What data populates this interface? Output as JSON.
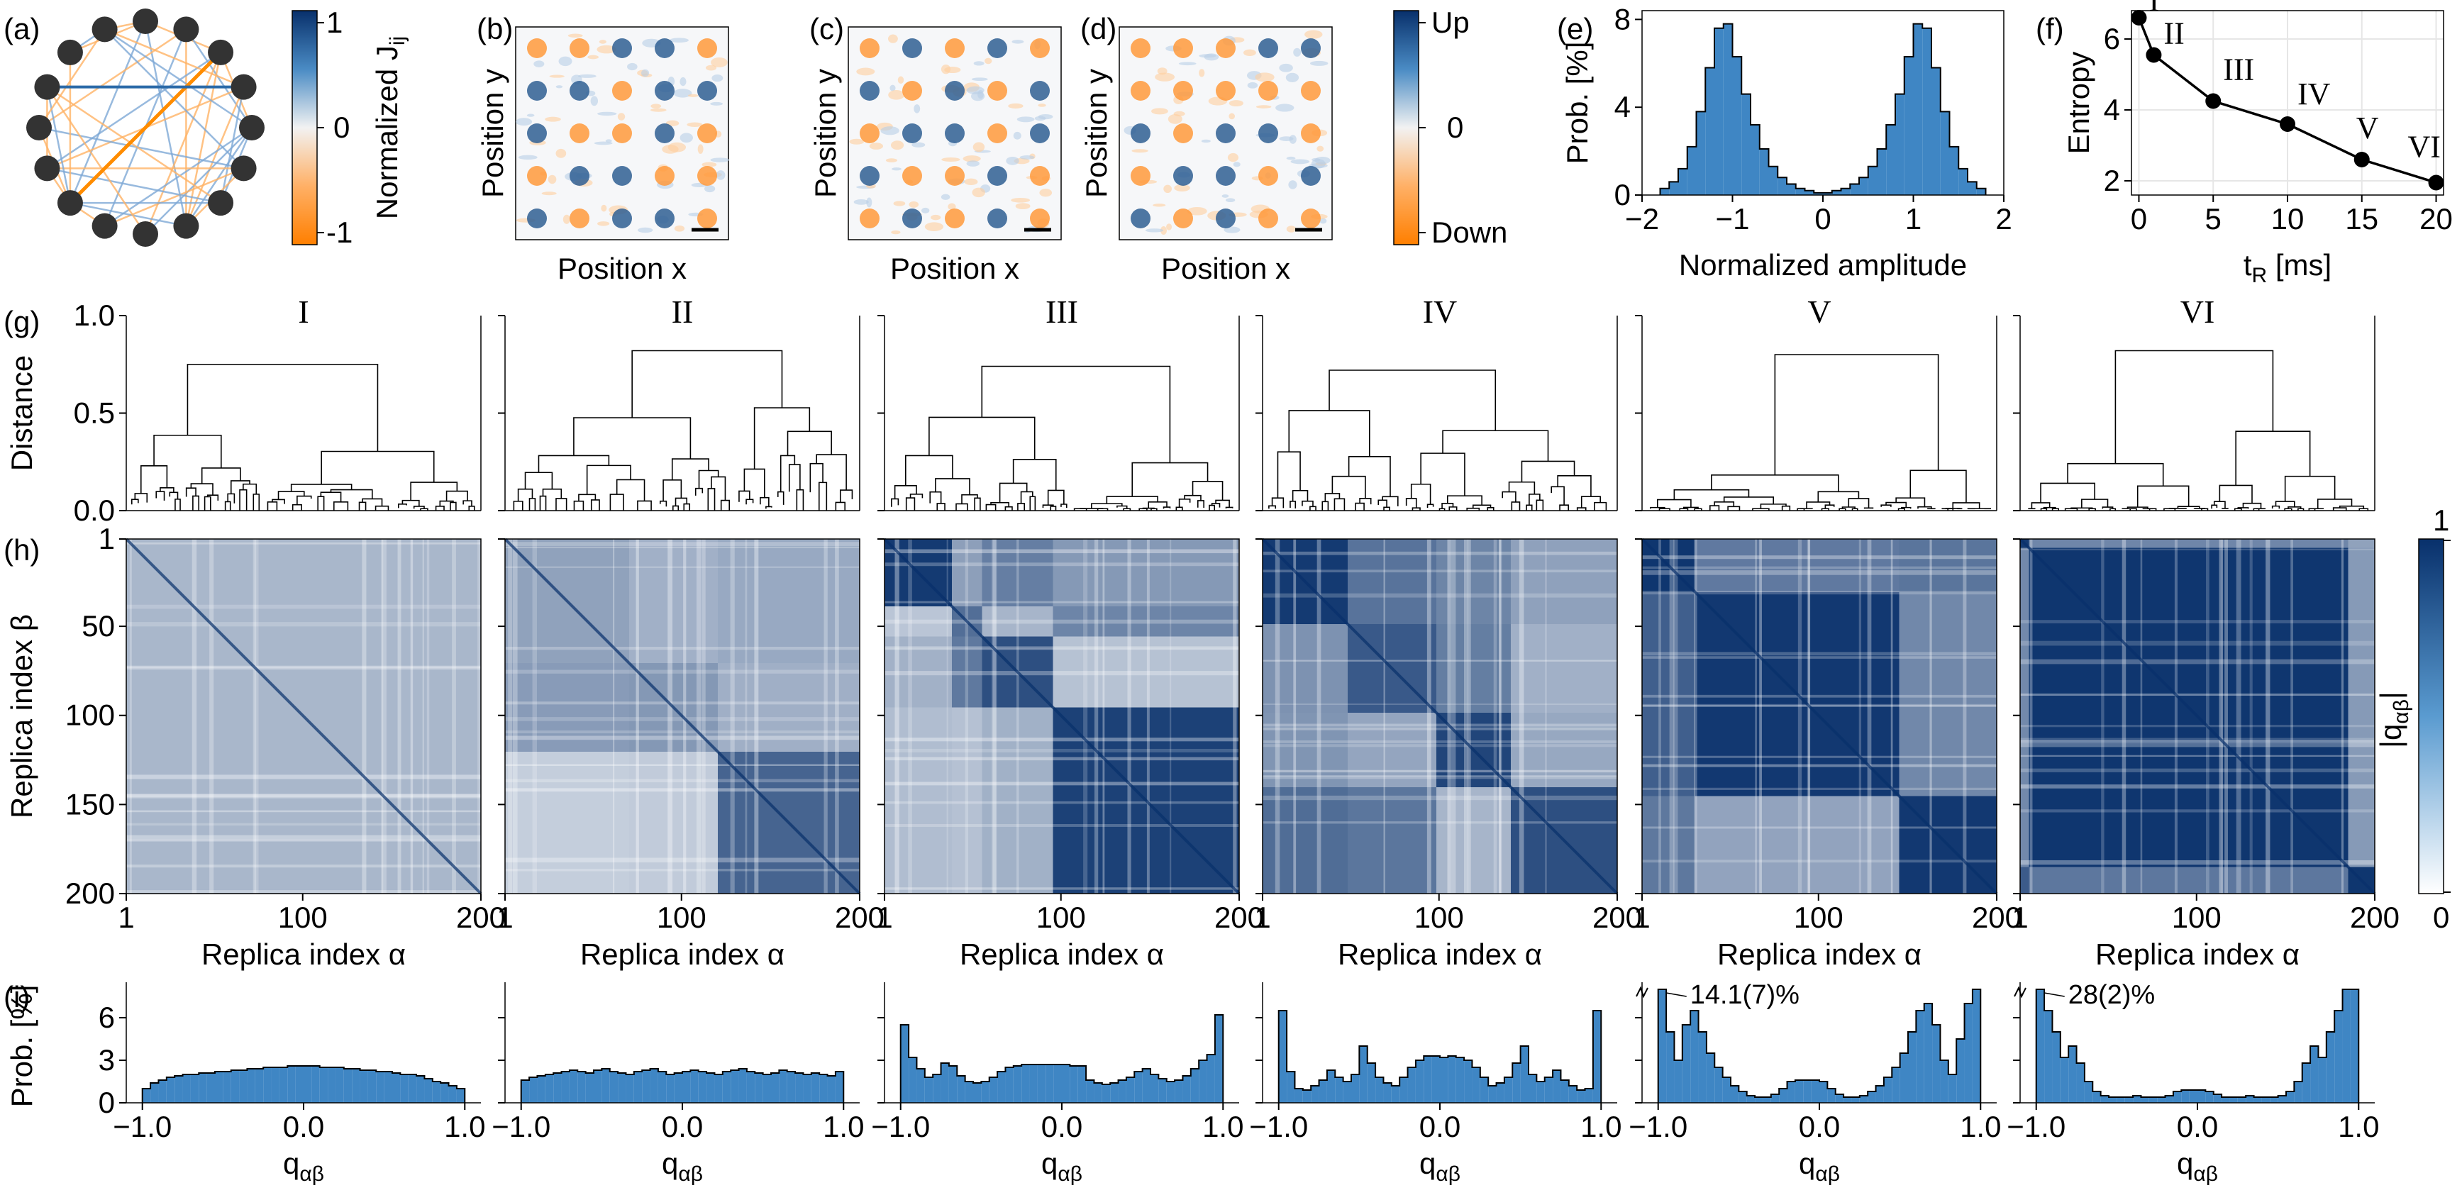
{
  "panel_labels": [
    "(a)",
    "(b)",
    "(c)",
    "(d)",
    "(e)",
    "(f)",
    "(g)",
    "(h)",
    "(i)"
  ],
  "colors": {
    "blue": "#08306b",
    "mid_blue": "#3a7fc1",
    "bar_blue": "#3f86c4",
    "orange": "#ff8c00",
    "edge_orange": "#ffb366",
    "node": "#333333"
  },
  "graph": {
    "n_nodes": 16,
    "colorbar_label": "Normalized J",
    "colorbar_sub": "ij",
    "ticks": [
      "1",
      "0",
      "-1"
    ]
  },
  "snapshots": {
    "titles": [
      "(b)",
      "(c)",
      "(d)"
    ],
    "xlabel": "Position x",
    "ylabel": "Position y",
    "colorbar_ticks": [
      "Up",
      "0",
      "Down"
    ]
  },
  "chart_data": [
    {
      "id": "e",
      "type": "bar",
      "xlabel": "Normalized amplitude",
      "ylabel": "Prob. [%]",
      "xlim": [
        -2,
        2
      ],
      "ylim": [
        0,
        8.4
      ],
      "xticks": [
        "-2",
        "-1",
        "0",
        "1",
        "2"
      ],
      "yticks": [
        "0",
        "4",
        "8"
      ],
      "bin_centers": [
        -1.75,
        -1.65,
        -1.55,
        -1.45,
        -1.35,
        -1.25,
        -1.15,
        -1.05,
        -0.95,
        -0.85,
        -0.75,
        -0.65,
        -0.55,
        -0.45,
        -0.35,
        -0.25,
        -0.15,
        -0.05,
        0.05,
        0.15,
        0.25,
        0.35,
        0.45,
        0.55,
        0.65,
        0.75,
        0.85,
        0.95,
        1.05,
        1.15,
        1.25,
        1.35,
        1.45,
        1.55,
        1.65,
        1.75
      ],
      "values": [
        0.3,
        0.6,
        1.2,
        2.2,
        3.8,
        5.8,
        7.6,
        7.8,
        6.3,
        4.6,
        3.2,
        2.1,
        1.3,
        0.8,
        0.5,
        0.3,
        0.2,
        0.1,
        0.1,
        0.2,
        0.3,
        0.5,
        0.8,
        1.3,
        2.1,
        3.2,
        4.6,
        6.3,
        7.8,
        7.6,
        5.8,
        3.8,
        2.2,
        1.2,
        0.6,
        0.3
      ]
    },
    {
      "id": "f",
      "type": "line",
      "xlabel": "t",
      "xlabel_sub": "R",
      "xlabel_unit": " [ms]",
      "ylabel": "Entropy",
      "xlim": [
        -0.5,
        20.5
      ],
      "ylim": [
        1.6,
        6.8
      ],
      "xticks": [
        "0",
        "5",
        "10",
        "15",
        "20"
      ],
      "yticks": [
        "2",
        "4",
        "6"
      ],
      "x": [
        0,
        1,
        5,
        10,
        15,
        20
      ],
      "y": [
        6.6,
        5.55,
        4.25,
        3.6,
        2.6,
        1.95
      ],
      "point_labels": [
        "I",
        "II",
        "III",
        "IV",
        "V",
        "VI"
      ]
    },
    {
      "id": "g",
      "type": "dendrogram",
      "ylabel": "Distance",
      "ylim": [
        0,
        1.0
      ],
      "yticks": [
        "0.0",
        "0.5",
        "1.0"
      ],
      "titles": [
        "I",
        "II",
        "III",
        "IV",
        "V",
        "VI"
      ],
      "top_merge_heights": [
        0.75,
        0.82,
        0.74,
        0.72,
        0.8,
        0.82
      ]
    },
    {
      "id": "h",
      "type": "heatmap",
      "xlabel": "Replica index α",
      "ylabel": "Replica index β",
      "xticks": [
        "1",
        "100",
        "200"
      ],
      "yticks": [
        "1",
        "50",
        "100",
        "150",
        "200"
      ],
      "colorbar_label": "|q",
      "colorbar_sub": "αβ",
      "colorbar_ticks": [
        "1",
        "0"
      ],
      "n_replicas": 200,
      "clusters": [
        [
          {
            "start": 0,
            "end": 200,
            "level": 0.35
          }
        ],
        [
          {
            "start": 0,
            "end": 70,
            "level": 0.45
          },
          {
            "start": 70,
            "end": 120,
            "level": 0.5
          },
          {
            "start": 120,
            "end": 200,
            "level": 0.75
          }
        ],
        [
          {
            "start": 0,
            "end": 38,
            "level": 0.95
          },
          {
            "start": 38,
            "end": 55,
            "level": 0.7
          },
          {
            "start": 55,
            "end": 95,
            "level": 0.85
          },
          {
            "start": 95,
            "end": 200,
            "level": 0.92
          }
        ],
        [
          {
            "start": 0,
            "end": 48,
            "level": 0.95
          },
          {
            "start": 48,
            "end": 98,
            "level": 0.8
          },
          {
            "start": 98,
            "end": 140,
            "level": 0.9
          },
          {
            "start": 140,
            "end": 200,
            "level": 0.85
          }
        ],
        [
          {
            "start": 0,
            "end": 30,
            "level": 0.97
          },
          {
            "start": 30,
            "end": 145,
            "level": 0.96
          },
          {
            "start": 145,
            "end": 200,
            "level": 0.96
          }
        ],
        [
          {
            "start": 0,
            "end": 5,
            "level": 0.95
          },
          {
            "start": 5,
            "end": 185,
            "level": 0.97
          },
          {
            "start": 185,
            "end": 200,
            "level": 0.97
          }
        ]
      ]
    },
    {
      "id": "i",
      "type": "histogram",
      "xlabel": "q",
      "xlabel_sub": "αβ",
      "ylabel": "Prob. [%]",
      "xlim": [
        -1.1,
        1.1
      ],
      "ylim": [
        0,
        8
      ],
      "xticks": [
        "-1.0",
        "0.0",
        "1.0"
      ],
      "yticks": [
        "0",
        "3",
        "6"
      ],
      "annotations": [
        "",
        "",
        "",
        "",
        "14.1(7)%",
        "28(2)%"
      ],
      "panels": [
        [
          1.0,
          1.4,
          1.6,
          1.8,
          1.9,
          2.0,
          2.0,
          2.1,
          2.1,
          2.2,
          2.2,
          2.3,
          2.3,
          2.4,
          2.4,
          2.5,
          2.5,
          2.5,
          2.6,
          2.6,
          2.6,
          2.6,
          2.5,
          2.5,
          2.5,
          2.4,
          2.4,
          2.3,
          2.3,
          2.2,
          2.2,
          2.1,
          2.0,
          2.0,
          1.9,
          1.7,
          1.5,
          1.4,
          1.2,
          1.0
        ],
        [
          1.6,
          1.8,
          1.9,
          2.0,
          2.1,
          2.2,
          2.3,
          2.2,
          2.1,
          2.3,
          2.4,
          2.2,
          2.1,
          2.0,
          2.2,
          2.3,
          2.4,
          2.2,
          2.0,
          2.1,
          2.2,
          2.3,
          2.2,
          2.1,
          2.0,
          2.2,
          2.3,
          2.4,
          2.2,
          2.1,
          2.0,
          2.1,
          2.3,
          2.2,
          2.1,
          2.0,
          2.1,
          2.0,
          1.9,
          2.2
        ],
        [
          5.5,
          3.2,
          2.4,
          1.8,
          2.0,
          2.8,
          2.6,
          1.9,
          1.5,
          1.4,
          1.5,
          1.8,
          2.2,
          2.5,
          2.6,
          2.7,
          2.7,
          2.7,
          2.7,
          2.7,
          2.7,
          2.6,
          2.6,
          1.6,
          1.4,
          1.3,
          1.4,
          1.6,
          1.8,
          2.2,
          2.4,
          2.0,
          1.7,
          1.5,
          1.6,
          1.9,
          2.4,
          3.0,
          3.4,
          6.2
        ],
        [
          6.5,
          2.2,
          1.0,
          0.9,
          1.2,
          1.6,
          2.3,
          1.8,
          1.5,
          2.0,
          4.0,
          2.8,
          1.8,
          1.4,
          1.2,
          1.8,
          2.5,
          3.0,
          3.3,
          3.3,
          3.2,
          3.3,
          3.2,
          3.0,
          2.5,
          1.8,
          1.2,
          1.4,
          1.8,
          2.8,
          4.0,
          2.0,
          1.5,
          1.8,
          2.3,
          1.6,
          1.2,
          0.9,
          1.0,
          6.5
        ],
        [
          8.0,
          5.0,
          3.0,
          5.5,
          6.5,
          5.0,
          3.5,
          2.5,
          1.8,
          1.2,
          0.8,
          0.5,
          0.4,
          0.4,
          0.6,
          1.0,
          1.5,
          1.6,
          1.6,
          1.6,
          1.5,
          1.0,
          0.6,
          0.4,
          0.4,
          0.5,
          0.8,
          1.2,
          1.8,
          2.5,
          3.5,
          5.0,
          6.5,
          7.0,
          5.5,
          3.0,
          2.0,
          4.5,
          7.0,
          8.0
        ],
        [
          8.0,
          6.5,
          5.0,
          3.2,
          4.0,
          2.8,
          1.5,
          0.8,
          0.5,
          0.4,
          0.4,
          0.4,
          0.5,
          0.4,
          0.4,
          0.4,
          0.5,
          0.8,
          0.9,
          0.9,
          0.9,
          0.8,
          0.6,
          0.4,
          0.4,
          0.4,
          0.5,
          0.4,
          0.4,
          0.4,
          0.5,
          0.8,
          1.5,
          2.8,
          4.0,
          3.2,
          5.0,
          6.5,
          8.0,
          8.0
        ]
      ]
    }
  ]
}
